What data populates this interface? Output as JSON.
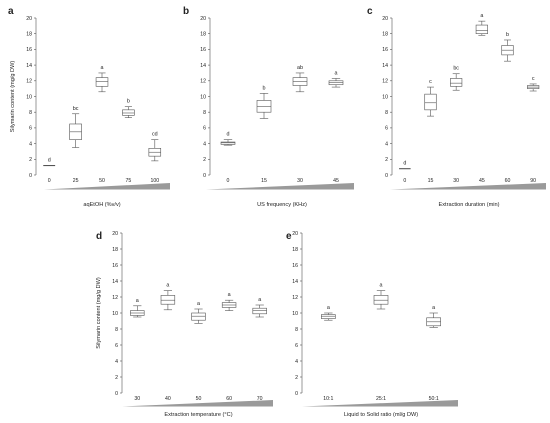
{
  "chart_data": [
    {
      "type": "boxplot",
      "panel_label": "a",
      "ylabel": "Silymarin content (mg/g DW)",
      "xlabel": "aqEtOH (%v/v)",
      "ylim": [
        0,
        20
      ],
      "yticks": [
        0,
        2,
        4,
        6,
        8,
        10,
        12,
        14,
        16,
        18,
        20
      ],
      "categories": [
        "0",
        "25",
        "50",
        "75",
        "100"
      ],
      "boxes": [
        {
          "min": 1.2,
          "q1": 1.2,
          "median": 1.2,
          "q3": 1.2,
          "max": 1.2
        },
        {
          "min": 3.5,
          "q1": 4.5,
          "median": 5.5,
          "q3": 6.5,
          "max": 7.8
        },
        {
          "min": 10.6,
          "q1": 11.3,
          "median": 11.9,
          "q3": 12.4,
          "max": 13.0
        },
        {
          "min": 7.3,
          "q1": 7.6,
          "median": 7.9,
          "q3": 8.3,
          "max": 8.7
        },
        {
          "min": 1.8,
          "q1": 2.4,
          "median": 2.9,
          "q3": 3.4,
          "max": 4.5
        }
      ],
      "significance": [
        "d",
        "bc",
        "a",
        "b",
        "cd"
      ],
      "wedge": true
    },
    {
      "type": "boxplot",
      "panel_label": "b",
      "ylabel": "",
      "xlabel": "US frequency (KHz)",
      "ylim": [
        0,
        20
      ],
      "yticks": [
        0,
        2,
        4,
        6,
        8,
        10,
        12,
        14,
        16,
        18,
        20
      ],
      "categories": [
        "0",
        "15",
        "30",
        "45"
      ],
      "boxes": [
        {
          "min": 3.8,
          "q1": 3.9,
          "median": 4.1,
          "q3": 4.2,
          "max": 4.5
        },
        {
          "min": 7.2,
          "q1": 8.0,
          "median": 8.7,
          "q3": 9.5,
          "max": 10.4
        },
        {
          "min": 10.6,
          "q1": 11.4,
          "median": 11.9,
          "q3": 12.4,
          "max": 13.0
        },
        {
          "min": 11.2,
          "q1": 11.5,
          "median": 11.8,
          "q3": 12.0,
          "max": 12.3
        }
      ],
      "significance": [
        "d",
        "b",
        "ab",
        "a"
      ],
      "wedge": true
    },
    {
      "type": "boxplot",
      "panel_label": "c",
      "ylabel": "",
      "xlabel": "Extraction duration (min)",
      "ylim": [
        0,
        20
      ],
      "yticks": [
        0,
        2,
        4,
        6,
        8,
        10,
        12,
        14,
        16,
        18,
        20
      ],
      "categories": [
        "0",
        "15",
        "30",
        "45",
        "60",
        "90"
      ],
      "boxes": [
        {
          "min": 0.8,
          "q1": 0.8,
          "median": 0.8,
          "q3": 0.8,
          "max": 0.8
        },
        {
          "min": 7.5,
          "q1": 8.3,
          "median": 9.2,
          "q3": 10.3,
          "max": 11.2
        },
        {
          "min": 10.8,
          "q1": 11.3,
          "median": 11.7,
          "q3": 12.3,
          "max": 12.9
        },
        {
          "min": 17.8,
          "q1": 18.0,
          "median": 18.4,
          "q3": 19.1,
          "max": 19.6
        },
        {
          "min": 14.5,
          "q1": 15.3,
          "median": 15.9,
          "q3": 16.5,
          "max": 17.2
        },
        {
          "min": 10.7,
          "q1": 11.0,
          "median": 11.2,
          "q3": 11.4,
          "max": 11.6
        }
      ],
      "significance": [
        "d",
        "c",
        "bc",
        "a",
        "b",
        "c"
      ],
      "wedge": true
    },
    {
      "type": "boxplot",
      "panel_label": "d",
      "ylabel": "Silymarin content (mg/g DW)",
      "xlabel": "Extraction temperature (°C)",
      "ylim": [
        0,
        20
      ],
      "yticks": [
        0,
        2,
        4,
        6,
        8,
        10,
        12,
        14,
        16,
        18,
        20
      ],
      "categories": [
        "30",
        "40",
        "50",
        "60",
        "70"
      ],
      "boxes": [
        {
          "min": 9.5,
          "q1": 9.7,
          "median": 10.0,
          "q3": 10.3,
          "max": 10.9
        },
        {
          "min": 10.4,
          "q1": 11.1,
          "median": 11.6,
          "q3": 12.2,
          "max": 12.8
        },
        {
          "min": 8.7,
          "q1": 9.1,
          "median": 9.6,
          "q3": 10.0,
          "max": 10.5
        },
        {
          "min": 10.3,
          "q1": 10.7,
          "median": 11.0,
          "q3": 11.3,
          "max": 11.6
        },
        {
          "min": 9.5,
          "q1": 9.9,
          "median": 10.3,
          "q3": 10.6,
          "max": 11.0
        }
      ],
      "significance": [
        "a",
        "a",
        "a",
        "a",
        "a"
      ],
      "wedge": true
    },
    {
      "type": "boxplot",
      "panel_label": "e",
      "ylabel": "",
      "xlabel": "Liquid    to Solid ratio (ml/g DW)",
      "ylim": [
        0,
        20
      ],
      "yticks": [
        0,
        2,
        4,
        6,
        8,
        10,
        12,
        14,
        16,
        18,
        20
      ],
      "categories": [
        "10:1",
        "25:1",
        "50:1"
      ],
      "boxes": [
        {
          "min": 9.1,
          "q1": 9.3,
          "median": 9.6,
          "q3": 9.8,
          "max": 10.0
        },
        {
          "min": 10.5,
          "q1": 11.1,
          "median": 11.6,
          "q3": 12.2,
          "max": 12.8
        },
        {
          "min": 8.2,
          "q1": 8.4,
          "median": 8.9,
          "q3": 9.4,
          "max": 10.0
        }
      ],
      "significance": [
        "a",
        "a",
        "a"
      ],
      "wedge": true
    }
  ]
}
